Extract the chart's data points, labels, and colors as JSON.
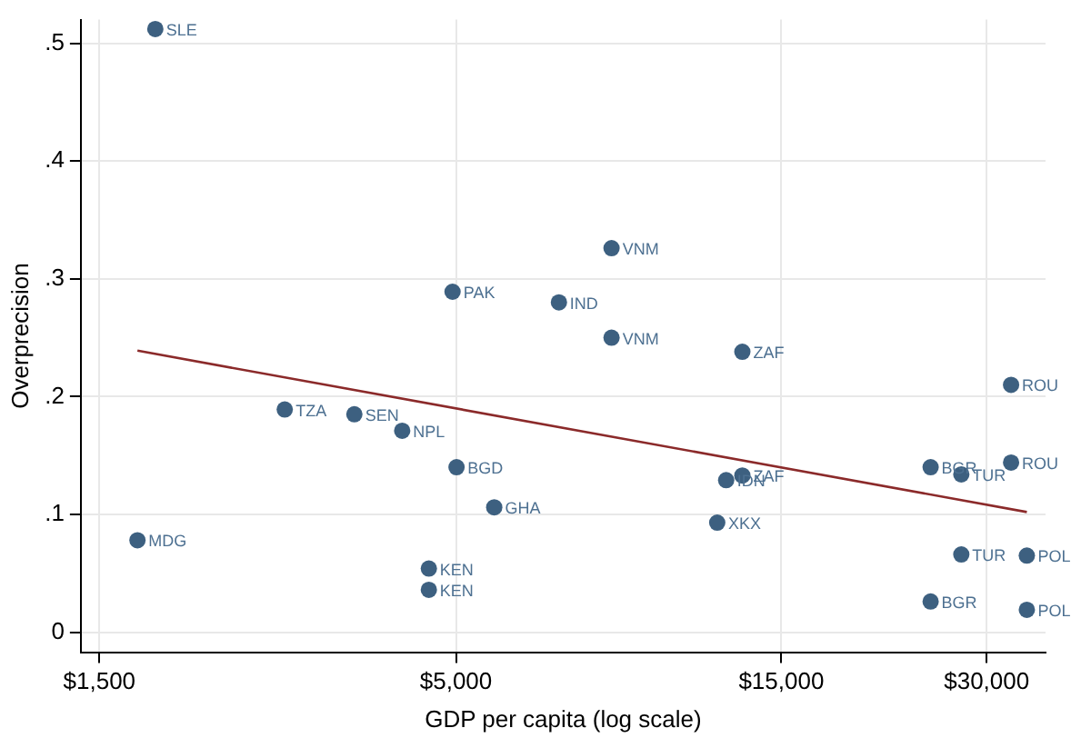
{
  "chart_data": {
    "type": "scatter",
    "xlabel": "GDP per capita (log scale)",
    "ylabel": "Overprecision",
    "log": "x",
    "grid": true,
    "legend": false,
    "marker": "circle",
    "xlim": [
      1409,
      36600
    ],
    "ylim": [
      -0.017,
      0.52
    ],
    "xticks": [
      {
        "value": 1500,
        "label": "$1,500"
      },
      {
        "value": 5000,
        "label": "$5,000"
      },
      {
        "value": 15000,
        "label": "$15,000"
      },
      {
        "value": 30000,
        "label": "$30,000"
      }
    ],
    "yticks": [
      0,
      {
        "value": 0.1,
        "label": ".1"
      },
      {
        "value": 0.2,
        "label": ".2"
      },
      {
        "value": 0.3,
        "label": ".3"
      },
      {
        "value": 0.4,
        "label": ".4"
      },
      {
        "value": 0.5,
        "label": ".5"
      }
    ],
    "series": [
      {
        "color": "#3d6080",
        "x": [
          1812,
          1706,
          2805,
          3548,
          4170,
          4943,
          5010,
          5690,
          4563,
          4563,
          7079,
          8455,
          8455,
          13150,
          12450,
          13150,
          12080,
          24830,
          27540,
          32580,
          32580,
          27540,
          34360,
          24830,
          34360
        ],
        "values": [
          0.512,
          0.078,
          0.189,
          0.185,
          0.171,
          0.289,
          0.14,
          0.106,
          0.054,
          0.036,
          0.28,
          0.326,
          0.25,
          0.238,
          0.129,
          0.133,
          0.093,
          0.14,
          0.134,
          0.21,
          0.144,
          0.066,
          0.065,
          0.026,
          0.019
        ],
        "value_labels": [
          "SLE",
          "MDG",
          "TZA",
          "SEN",
          "NPL",
          "PAK",
          "BGD",
          "GHA",
          "KEN",
          "KEN",
          "IND",
          "VNM",
          "VNM",
          "ZAF",
          "IDN",
          "ZAF",
          "XKX",
          "BGR",
          "TUR",
          "ROU",
          "ROU",
          "TUR",
          "POL",
          "BGR",
          "POL"
        ]
      },
      {
        "type": "line",
        "color": "#8b2a2a",
        "marker": "none",
        "x": [
          1706,
          34360
        ],
        "values": [
          0.239,
          0.102
        ]
      }
    ]
  }
}
